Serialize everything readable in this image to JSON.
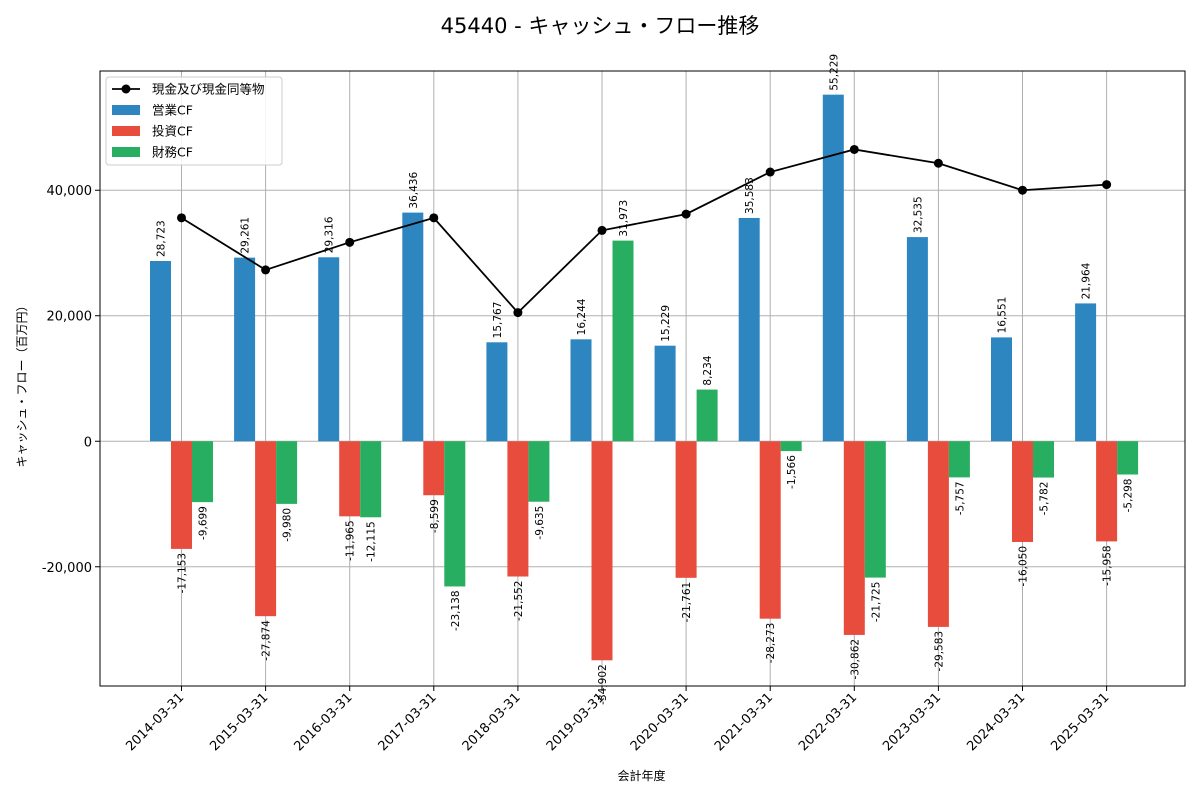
{
  "chart_data": {
    "type": "bar",
    "title": "45440 - キャッシュ・フロー推移",
    "xlabel": "会計年度",
    "ylabel": "キャッシュ・フロー（百万円）",
    "ylim": [
      -39000,
      59000
    ],
    "yticks": [
      -20000,
      0,
      20000,
      40000
    ],
    "ytick_labels": [
      "-20,000",
      "0",
      "20,000",
      "40,000"
    ],
    "grid": true,
    "legend_position": "top-left",
    "categories": [
      "2014-03-31",
      "2015-03-31",
      "2016-03-31",
      "2017-03-31",
      "2018-03-31",
      "2019-03-31",
      "2020-03-31",
      "2021-03-31",
      "2022-03-31",
      "2023-03-31",
      "2024-03-31",
      "2025-03-31"
    ],
    "series": [
      {
        "name": "営業CF",
        "kind": "bar",
        "color": "#2e86c1",
        "values": [
          28723,
          29261,
          29316,
          36436,
          15767,
          16244,
          15229,
          35583,
          55229,
          32535,
          16551,
          21964
        ],
        "labels": [
          "28,723",
          "29,261",
          "29,316",
          "36,436",
          "15,767",
          "16,244",
          "15,229",
          "35,583",
          "55,229",
          "32,535",
          "16,551",
          "21,964"
        ]
      },
      {
        "name": "投資CF",
        "kind": "bar",
        "color": "#e74c3c",
        "values": [
          -17153,
          -27874,
          -11965,
          -8599,
          -21552,
          -34902,
          -21761,
          -28273,
          -30862,
          -29583,
          -16050,
          -15958
        ],
        "labels": [
          "-17,153",
          "-27,874",
          "-11,965",
          "-8,599",
          "-21,552",
          "-34,902",
          "-21,761",
          "-28,273",
          "-30,862",
          "-29,583",
          "-16,050",
          "-15,958"
        ]
      },
      {
        "name": "財務CF",
        "kind": "bar",
        "color": "#27ae60",
        "values": [
          -9699,
          -9980,
          -12115,
          -23138,
          -9635,
          31973,
          8234,
          -1566,
          -21725,
          -5757,
          -5782,
          -5298
        ],
        "labels": [
          "-9,699",
          "-9,980",
          "-12,115",
          "-23,138",
          "-9,635",
          "31,973",
          "8,234",
          "-1,566",
          "-21,725",
          "-5,757",
          "-5,782",
          "-5,298"
        ]
      },
      {
        "name": "現金及び現金同等物",
        "kind": "line",
        "color": "#000000",
        "values": [
          35600,
          27300,
          31700,
          35600,
          20500,
          33600,
          36200,
          42900,
          46500,
          44300,
          40000,
          40900
        ]
      }
    ]
  }
}
